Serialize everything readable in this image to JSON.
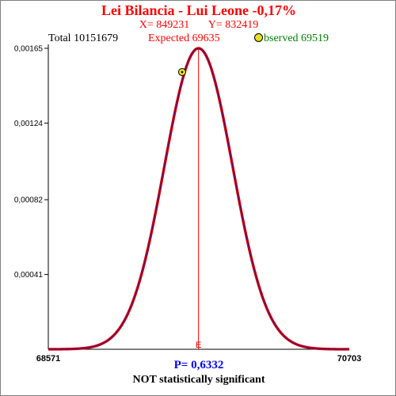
{
  "header": {
    "title": "Lei Bilancia - Lui Leone  -0,17%",
    "x_label": "X= 849231",
    "y_label": "Y= 832419"
  },
  "stats": {
    "total": "Total  10151679",
    "expected": "Expected  69635",
    "observed": "bserved  69519"
  },
  "footer": {
    "p_value": "P= 0,6332",
    "verdict": "NOT statistically significant"
  },
  "colors": {
    "title": "#ff0000",
    "coords": "#ff0000",
    "total": "#000000",
    "expected": "#ff0000",
    "observed": "#008000",
    "curve_outer": "#e00000",
    "curve_inner": "#1a1aa0",
    "marker_fill": "#e8e020",
    "p_value": "#0000ff",
    "axis": "#000000"
  },
  "chart_data": {
    "type": "line",
    "distribution": "normal",
    "xlim": [
      68571,
      70703
    ],
    "ylim": [
      0,
      0.00165
    ],
    "y_ticks": [
      "0,00165",
      "0,00124",
      "0,00082",
      "0,00041"
    ],
    "y_tick_values": [
      0.00165,
      0.00124,
      0.00082,
      0.00041
    ],
    "x_tick_labels": [
      "68571",
      "70703"
    ],
    "mean": 69635,
    "peak_density": 0.00165,
    "expected_label": "E",
    "observed_point": {
      "x": 69519,
      "y": 0.00152
    }
  }
}
